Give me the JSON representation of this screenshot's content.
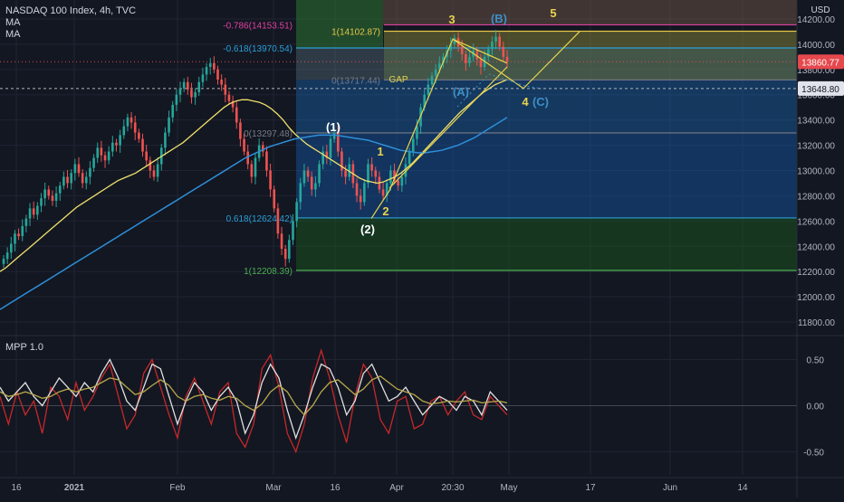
{
  "header": {
    "symbol_title": "NASDAQ 100 Index, 4h, TVC",
    "ma1_label": "MA",
    "ma2_label": "MA",
    "currency": "USD",
    "indicator_label": "MPP 1.0"
  },
  "colors": {
    "background": "#131722",
    "grid": "#1f2433",
    "candle_up": "#26a69a",
    "candle_down": "#ef5350",
    "ma_yellow": "#f0e06b",
    "ma_blue": "#2d8fd8",
    "price_tag_red": "#e5484d",
    "fib_green": "#4caf50",
    "fib_blue": "#2a9fd6",
    "fib_gold": "#e8c648",
    "fib_pink": "#e040a0",
    "wave_yellow": "#e8d44d",
    "wave_blue": "#3d8fc6",
    "wave_white": "#ffffff",
    "mpp_red": "#c62828",
    "mpp_white": "#e0e0e0",
    "mpp_yellow": "#b8a84a"
  },
  "chart_data": [
    {
      "type": "candlestick",
      "title": "NASDAQ 100 Index, 4h, TVC",
      "ylim": [
        11700,
        14350
      ],
      "yticks": [
        11800,
        12000,
        12200,
        12400,
        12600,
        12800,
        13000,
        13200,
        13400,
        13600,
        13800,
        14000,
        14200
      ],
      "ytick_labels": [
        "11800.00",
        "12000.00",
        "12200.00",
        "12400.00",
        "12600.00",
        "12800.00",
        "13000.00",
        "13200.00",
        "13400.00",
        "13600.00",
        "13800.00",
        "14000.00",
        "14200.00"
      ],
      "xticks": [
        "16",
        "2021",
        "Feb",
        "Mar",
        "16",
        "Apr",
        "20:30",
        "May",
        "17",
        "Jun",
        "14"
      ],
      "price_tags": [
        {
          "label": "13860.77",
          "value": 13860.77,
          "color": "#e5484d"
        },
        {
          "label": "13648.80",
          "value": 13648.8,
          "color": "#ffffff"
        }
      ],
      "close_series": [
        12300,
        12350,
        12420,
        12500,
        12480,
        12560,
        12620,
        12700,
        12650,
        12720,
        12780,
        12850,
        12800,
        12760,
        12820,
        12880,
        12950,
        12900,
        12980,
        13050,
        12980,
        12900,
        12950,
        13020,
        13100,
        13180,
        13120,
        13080,
        13150,
        13220,
        13200,
        13280,
        13350,
        13420,
        13380,
        13300,
        13250,
        13150,
        13080,
        13000,
        12950,
        13050,
        13180,
        13300,
        13420,
        13520,
        13600,
        13650,
        13700,
        13640,
        13580,
        13620,
        13700,
        13760,
        13820,
        13850,
        13800,
        13720,
        13680,
        13600,
        13550,
        13500,
        13380,
        13250,
        13150,
        13050,
        12950,
        13100,
        13200,
        13150,
        13000,
        12850,
        12700,
        12500,
        12380,
        12300,
        12450,
        12600,
        12750,
        12900,
        13000,
        12950,
        12850,
        12900,
        13050,
        13150,
        13100,
        13250,
        13300,
        13150,
        13000,
        12950,
        13050,
        12900,
        12800,
        12750,
        12900,
        13050,
        13000,
        12950,
        12850,
        12800,
        12900,
        13000,
        12920,
        12880,
        12950,
        13050,
        13150,
        13250,
        13350,
        13500,
        13600,
        13680,
        13750,
        13800,
        13850,
        13900,
        13950,
        14000,
        14050,
        13980,
        13920,
        13850,
        13900,
        13950,
        13880,
        13820,
        13900,
        13960,
        14020,
        14060,
        13980,
        13900,
        13860
      ],
      "ma_fast": [
        12200,
        12230,
        12270,
        12310,
        12350,
        12390,
        12430,
        12470,
        12510,
        12550,
        12590,
        12630,
        12670,
        12710,
        12740,
        12770,
        12800,
        12830,
        12860,
        12890,
        12920,
        12940,
        12960,
        12980,
        13010,
        13040,
        13070,
        13100,
        13130,
        13160,
        13190,
        13220,
        13260,
        13300,
        13340,
        13380,
        13420,
        13460,
        13500,
        13530,
        13550,
        13560,
        13560,
        13550,
        13540,
        13520,
        13490,
        13450,
        13400,
        13340,
        13290,
        13250,
        13210,
        13180,
        13150,
        13120,
        13090,
        13060,
        13030,
        13000,
        12970,
        12940,
        12920,
        12910,
        12900,
        12910,
        12930,
        12950,
        12980,
        13020,
        13060,
        13110,
        13160,
        13210,
        13260,
        13310,
        13360,
        13410,
        13460,
        13500,
        13540,
        13580,
        13620,
        13650,
        13680,
        13700,
        13720
      ],
      "ma_slow": [
        11900,
        11940,
        11980,
        12020,
        12060,
        12100,
        12140,
        12180,
        12220,
        12260,
        12300,
        12340,
        12380,
        12420,
        12460,
        12500,
        12540,
        12580,
        12620,
        12660,
        12700,
        12740,
        12780,
        12820,
        12860,
        12900,
        12940,
        12980,
        13020,
        13060,
        13100,
        13130,
        13160,
        13190,
        13210,
        13230,
        13250,
        13260,
        13270,
        13280,
        13280,
        13280,
        13270,
        13260,
        13250,
        13240,
        13220,
        13200,
        13180,
        13160,
        13150,
        13140,
        13140,
        13150,
        13160,
        13180,
        13200,
        13230,
        13260,
        13300,
        13340,
        13380,
        13420
      ],
      "fib_levels": [
        {
          "ratio_label": "-0.786(14153.51)",
          "value": 14153.51,
          "color": "#e040a0"
        },
        {
          "ratio_label": "1(14102.87)",
          "value": 14102.87,
          "color": "#e8c648"
        },
        {
          "ratio_label": "-0.618(13970.54)",
          "value": 13970.54,
          "color": "#2a9fd6"
        },
        {
          "ratio_label": "0(13717.44)",
          "value": 13717.44,
          "color": "#787b86"
        },
        {
          "ratio_label": "0(13297.48)",
          "value": 13297.48,
          "color": "#787b86"
        },
        {
          "ratio_label": "0.618(12624.42)",
          "value": 12624.42,
          "color": "#2a9fd6"
        },
        {
          "ratio_label": "1(12208.39)",
          "value": 12208.39,
          "color": "#4caf50"
        }
      ],
      "wave_labels": [
        {
          "text": "(1)",
          "color": "#ffffff"
        },
        {
          "text": "(2)",
          "color": "#ffffff"
        },
        {
          "text": "1",
          "color": "#e8d44d"
        },
        {
          "text": "2",
          "color": "#e8d44d"
        },
        {
          "text": "3",
          "color": "#e8d44d"
        },
        {
          "text": "4",
          "color": "#e8d44d"
        },
        {
          "text": "5",
          "color": "#e8d44d"
        },
        {
          "text": "(A)",
          "color": "#3d8fc6"
        },
        {
          "text": "(B)",
          "color": "#3d8fc6"
        },
        {
          "text": "(C)",
          "color": "#3d8fc6"
        },
        {
          "text": "GAP",
          "color": "#e8d44d"
        }
      ]
    },
    {
      "type": "line",
      "title": "MPP 1.0",
      "ylim": [
        -0.75,
        0.75
      ],
      "yticks": [
        -0.5,
        0.0,
        0.5
      ],
      "ytick_labels": [
        "-0.50",
        "0.00",
        "0.50"
      ],
      "series": [
        {
          "color": "#c62828",
          "values": [
            0.1,
            -0.2,
            0.15,
            -0.1,
            0.05,
            -0.3,
            0.2,
            0.1,
            -0.15,
            0.25,
            -0.05,
            0.1,
            0.3,
            0.45,
            0.1,
            -0.25,
            -0.1,
            0.35,
            0.5,
            0.2,
            -0.1,
            -0.35,
            0.1,
            0.3,
            0.05,
            -0.2,
            0.15,
            0.25,
            -0.3,
            -0.45,
            -0.2,
            0.4,
            0.55,
            0.2,
            -0.3,
            -0.5,
            -0.2,
            0.3,
            0.6,
            0.3,
            -0.1,
            -0.4,
            0.1,
            0.45,
            0.3,
            -0.15,
            -0.3,
            0.05,
            0.1,
            -0.25,
            -0.2,
            0.05,
            0.1,
            -0.1,
            0.05,
            0.15,
            -0.1,
            -0.15,
            0.1,
            0.0,
            -0.1
          ]
        },
        {
          "color": "#e0e0e0",
          "values": [
            0.2,
            0.05,
            0.15,
            0.25,
            0.1,
            0.0,
            0.15,
            0.3,
            0.2,
            0.1,
            0.25,
            0.15,
            0.35,
            0.5,
            0.3,
            0.05,
            -0.05,
            0.2,
            0.45,
            0.4,
            0.1,
            -0.2,
            0.05,
            0.25,
            0.15,
            -0.05,
            0.1,
            0.2,
            0.05,
            -0.3,
            -0.1,
            0.25,
            0.45,
            0.3,
            -0.05,
            -0.35,
            -0.1,
            0.2,
            0.45,
            0.4,
            0.2,
            -0.1,
            0.05,
            0.35,
            0.45,
            0.25,
            0.05,
            0.1,
            0.2,
            0.05,
            -0.1,
            0.0,
            0.1,
            0.05,
            -0.05,
            0.1,
            0.05,
            -0.1,
            0.15,
            0.05,
            -0.05
          ]
        },
        {
          "color": "#b8a84a",
          "values": [
            0.15,
            0.1,
            0.12,
            0.15,
            0.12,
            0.08,
            0.1,
            0.15,
            0.18,
            0.15,
            0.18,
            0.2,
            0.25,
            0.3,
            0.28,
            0.2,
            0.12,
            0.15,
            0.22,
            0.28,
            0.22,
            0.1,
            0.05,
            0.1,
            0.12,
            0.08,
            0.06,
            0.1,
            0.08,
            0.0,
            -0.05,
            0.02,
            0.15,
            0.22,
            0.15,
            0.0,
            -0.1,
            0.0,
            0.15,
            0.25,
            0.28,
            0.2,
            0.12,
            0.18,
            0.28,
            0.32,
            0.25,
            0.18,
            0.15,
            0.12,
            0.05,
            0.02,
            0.03,
            0.05,
            0.04,
            0.05,
            0.06,
            0.03,
            0.04,
            0.05,
            0.03
          ]
        }
      ]
    }
  ]
}
